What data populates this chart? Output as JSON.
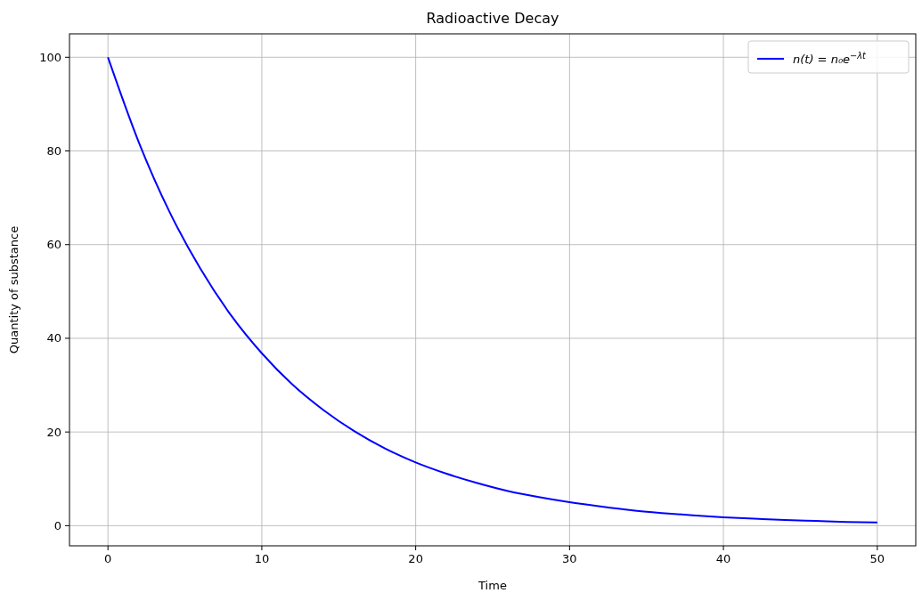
{
  "chart_data": {
    "type": "line",
    "title": "Radioactive Decay",
    "xlabel": "Time",
    "ylabel": "Quantity of substance",
    "x": [
      0,
      2,
      4,
      6,
      8,
      10,
      12,
      14,
      16,
      18,
      20,
      22,
      24,
      26,
      28,
      30,
      32,
      34,
      36,
      38,
      40,
      42,
      44,
      46,
      48,
      50
    ],
    "series": [
      {
        "name": "n(t) = n₀e$^{−λt}$",
        "color": "#0000ff",
        "values": [
          100,
          81.9,
          67.0,
          54.9,
          44.9,
          36.8,
          30.1,
          24.7,
          20.2,
          16.5,
          13.5,
          11.1,
          9.1,
          7.4,
          6.1,
          5.0,
          4.1,
          3.3,
          2.7,
          2.2,
          1.8,
          1.5,
          1.2,
          1.0,
          0.8,
          0.7
        ]
      }
    ],
    "xlim": [
      -2.5,
      52.5
    ],
    "xticks": [
      0,
      10,
      20,
      30,
      40,
      50
    ],
    "ylim": [
      -4.3,
      105
    ],
    "yticks": [
      0,
      20,
      40,
      60,
      80,
      100
    ],
    "grid": true,
    "legend": "top right",
    "line_style": "solid",
    "marker": "none"
  }
}
